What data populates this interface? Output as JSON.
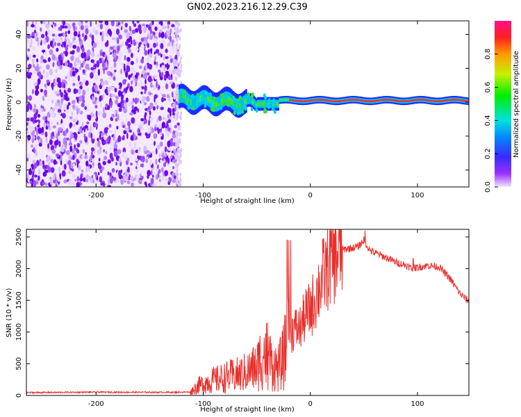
{
  "title": "GN02.2023.216.12.29.C39",
  "chart_data": [
    {
      "type": "heatmap",
      "title": "GN02.2023.216.12.29.C39",
      "xlabel": "Height of straight line (km)",
      "ylabel": "Frequency (Hz)",
      "xlim": [
        -265,
        148
      ],
      "ylim": [
        -50,
        48
      ],
      "xticks": [
        -200,
        -100,
        0,
        100
      ],
      "yticks": [
        -40,
        -20,
        0,
        20,
        40
      ],
      "colorbar": {
        "label": "Normalized spectral amplitude",
        "range": [
          0.0,
          1.0
        ],
        "ticks": [
          0.0,
          0.2,
          0.4,
          0.6,
          0.8
        ]
      },
      "description_regions": [
        {
          "x_range": [
            -265,
            -123
          ],
          "freq_range": [
            -50,
            48
          ],
          "amplitude": "low noise (purple/violet)"
        },
        {
          "x_range": [
            -123,
            148
          ],
          "freq_range": [
            -10,
            8
          ],
          "amplitude": "signal band converging near 1 Hz (green to red)"
        }
      ]
    },
    {
      "type": "line",
      "xlabel": "Height of straight line (km)",
      "ylabel": "SNR (10 * v/v)",
      "xlim": [
        -265,
        148
      ],
      "ylim": [
        0,
        2620
      ],
      "xticks": [
        -200,
        -100,
        0,
        100
      ],
      "yticks": [
        0,
        500,
        1000,
        1500,
        2000,
        2500
      ],
      "series": [
        {
          "name": "SNR",
          "color": "#e8302c",
          "x": [
            -265,
            -240,
            -200,
            -160,
            -125,
            -112,
            -105,
            -95,
            -85,
            -75,
            -65,
            -58,
            -50,
            -45,
            -40,
            -35,
            -30,
            -25,
            -20,
            -15,
            -10,
            -5,
            0,
            5,
            10,
            20,
            30,
            40,
            45,
            50,
            55,
            60,
            70,
            80,
            90,
            95,
            100,
            110,
            120,
            130,
            140,
            148
          ],
          "values": [
            45,
            48,
            52,
            50,
            50,
            55,
            150,
            220,
            260,
            300,
            330,
            380,
            450,
            650,
            650,
            480,
            420,
            600,
            950,
            1050,
            1050,
            1250,
            1350,
            1550,
            1800,
            2150,
            2300,
            2330,
            2350,
            2450,
            2300,
            2250,
            2180,
            2100,
            2050,
            2000,
            2020,
            2050,
            2030,
            1850,
            1600,
            1480
          ]
        }
      ]
    }
  ]
}
